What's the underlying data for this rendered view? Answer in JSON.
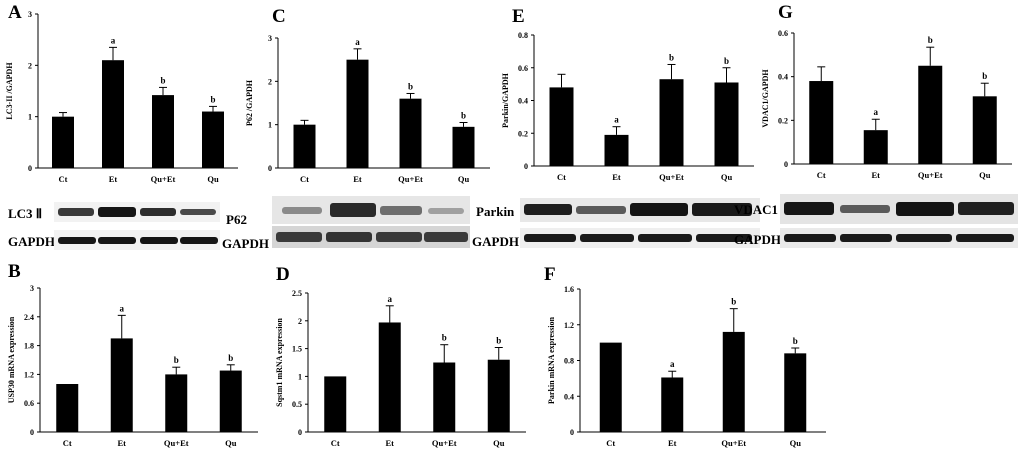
{
  "panels": {
    "A": {
      "label": "A"
    },
    "B": {
      "label": "B"
    },
    "C": {
      "label": "C"
    },
    "D": {
      "label": "D"
    },
    "E": {
      "label": "E"
    },
    "F": {
      "label": "F"
    },
    "G": {
      "label": "G"
    }
  },
  "blots": {
    "A": {
      "target": "LC3 Ⅱ",
      "control": "GAPDH"
    },
    "C": {
      "target": "P62",
      "control": "GAPDH"
    },
    "E": {
      "target": "Parkin",
      "control": "GAPDH"
    },
    "G": {
      "target": "VDAC1",
      "control": "GAPDH"
    }
  },
  "chart_data": [
    {
      "id": "A",
      "type": "bar",
      "categories": [
        "Ct",
        "Et",
        "Qu+Et",
        "Qu"
      ],
      "values": [
        1.0,
        2.1,
        1.42,
        1.1
      ],
      "errors": [
        0.08,
        0.25,
        0.15,
        0.1
      ],
      "sig": [
        "",
        "a",
        "b",
        "b"
      ],
      "ylabel": "LC3-II /GAPDH",
      "ylim": [
        0,
        3
      ],
      "yticks": [
        "0",
        "1",
        "2",
        "3"
      ]
    },
    {
      "id": "C",
      "type": "bar",
      "categories": [
        "Ct",
        "Et",
        "Qu+Et",
        "Qu"
      ],
      "values": [
        1.0,
        2.5,
        1.6,
        0.95
      ],
      "errors": [
        0.1,
        0.25,
        0.12,
        0.1
      ],
      "sig": [
        "",
        "a",
        "b",
        "b"
      ],
      "ylabel": "P62 /GAPDH",
      "ylim": [
        0,
        3
      ],
      "yticks": [
        "0",
        "1",
        "2",
        "3"
      ]
    },
    {
      "id": "E",
      "type": "bar",
      "categories": [
        "Ct",
        "Et",
        "Qu+Et",
        "Qu"
      ],
      "values": [
        0.48,
        0.19,
        0.53,
        0.51
      ],
      "errors": [
        0.08,
        0.05,
        0.09,
        0.09
      ],
      "sig": [
        "",
        "a",
        "b",
        "b"
      ],
      "ylabel": "Parkin/GAPDH",
      "ylim": [
        0,
        0.8
      ],
      "yticks": [
        "0",
        "0.2",
        "0.4",
        "0.6",
        "0.8"
      ]
    },
    {
      "id": "G",
      "type": "bar",
      "categories": [
        "Ct",
        "Et",
        "Qu+Et",
        "Qu"
      ],
      "values": [
        0.38,
        0.155,
        0.45,
        0.31
      ],
      "errors": [
        0.065,
        0.05,
        0.085,
        0.06
      ],
      "sig": [
        "",
        "a",
        "b",
        "b"
      ],
      "ylabel": "VDAC1/GAPDH",
      "ylim": [
        0,
        0.6
      ],
      "yticks": [
        "0",
        "0.2",
        "0.4",
        "0.6"
      ]
    },
    {
      "id": "B",
      "type": "bar",
      "categories": [
        "Ct",
        "Et",
        "Qu+Et",
        "Qu"
      ],
      "values": [
        1.0,
        1.95,
        1.2,
        1.28
      ],
      "errors": [
        0,
        0.48,
        0.15,
        0.12
      ],
      "sig": [
        "",
        "a",
        "b",
        "b"
      ],
      "ylabel": "USP30 mRNA expression",
      "ylim": [
        0,
        3
      ],
      "yticks": [
        "0",
        "0.6",
        "1.2",
        "1.8",
        "2.4",
        "3"
      ]
    },
    {
      "id": "D",
      "type": "bar",
      "categories": [
        "Ct",
        "Et",
        "Qu+Et",
        "Qu"
      ],
      "values": [
        1.0,
        1.97,
        1.25,
        1.3
      ],
      "errors": [
        0,
        0.3,
        0.32,
        0.22
      ],
      "sig": [
        "",
        "a",
        "b",
        "b"
      ],
      "ylabel": "Sqstm1 mRNA expression",
      "ylim": [
        0,
        2.5
      ],
      "yticks": [
        "0",
        "0.5",
        "1",
        "1.5",
        "2",
        "2.5"
      ]
    },
    {
      "id": "F",
      "type": "bar",
      "categories": [
        "Ct",
        "Et",
        "Qu+Et",
        "Qu"
      ],
      "values": [
        1.0,
        0.61,
        1.12,
        0.88
      ],
      "errors": [
        0,
        0.07,
        0.26,
        0.06
      ],
      "sig": [
        "",
        "a",
        "b",
        "b"
      ],
      "ylabel": "Parkin mRNA expression",
      "ylim": [
        0,
        1.6
      ],
      "yticks": [
        "0",
        "0.4",
        "0.8",
        "1.2",
        "1.6"
      ]
    }
  ]
}
